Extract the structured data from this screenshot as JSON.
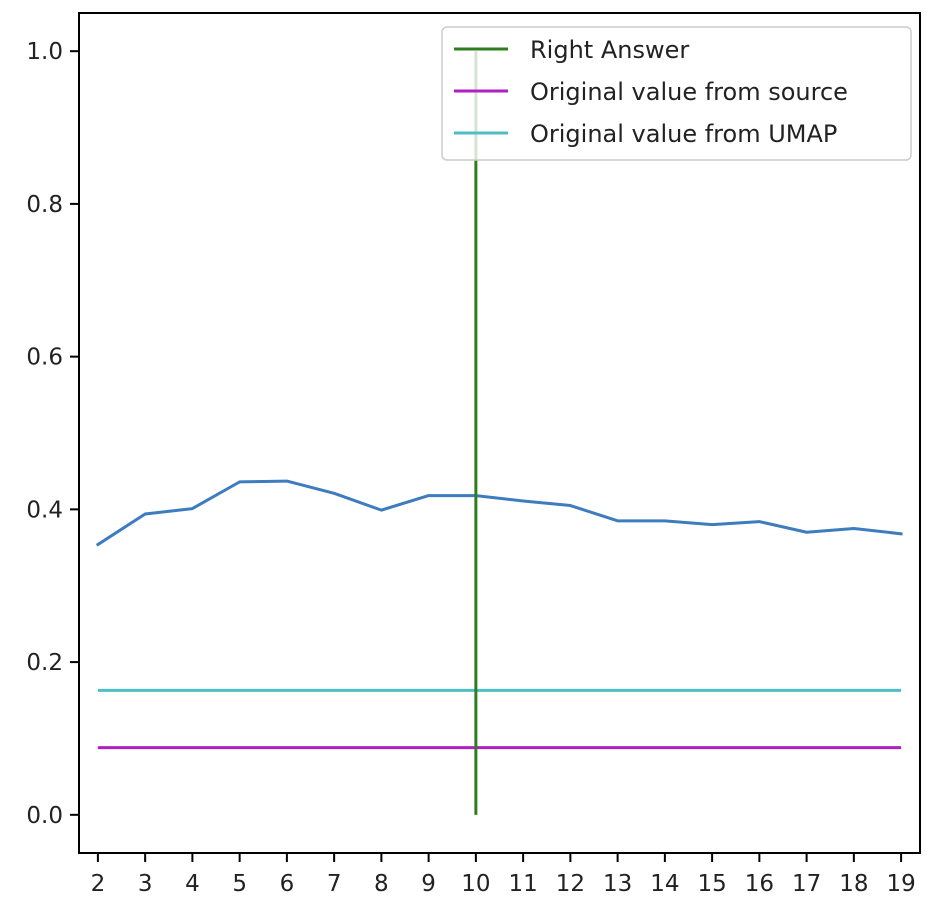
{
  "chart_data": {
    "type": "line",
    "title": "",
    "xlabel": "",
    "ylabel": "",
    "xlim": [
      1.6,
      19.4
    ],
    "ylim": [
      -0.05,
      1.05
    ],
    "xticks": [
      2,
      3,
      4,
      5,
      6,
      7,
      8,
      9,
      10,
      11,
      12,
      13,
      14,
      15,
      16,
      17,
      18,
      19
    ],
    "yticks": [
      0.0,
      0.2,
      0.4,
      0.6,
      0.8,
      1.0
    ],
    "ytick_labels": [
      "0.0",
      "0.2",
      "0.4",
      "0.6",
      "0.8",
      "1.0"
    ],
    "grid": false,
    "legend_position": "top-right",
    "series": [
      {
        "color": "#3d7cbf",
        "x": [
          2,
          3,
          4,
          5,
          6,
          7,
          8,
          9,
          10,
          11,
          12,
          13,
          14,
          15,
          16,
          17,
          18,
          19
        ],
        "y": [
          0.354,
          0.394,
          0.401,
          0.436,
          0.437,
          0.421,
          0.399,
          0.418,
          0.418,
          0.411,
          0.405,
          0.385,
          0.385,
          0.38,
          0.384,
          0.37,
          0.375,
          0.368
        ]
      }
    ],
    "vertical_lines": [
      {
        "name": "Right Answer",
        "x": 10,
        "y": [
          0.0,
          1.0
        ],
        "color": "#2e7d1f"
      }
    ],
    "horizontal_lines": [
      {
        "name": "Original value from source",
        "y": 0.088,
        "x": [
          2,
          19
        ],
        "color": "#b01fc4"
      },
      {
        "name": "Original value from UMAP",
        "y": 0.163,
        "x": [
          2,
          19
        ],
        "color": "#4dbec4"
      }
    ],
    "legend": [
      "Right Answer",
      "Original value from source",
      "Original value from UMAP"
    ]
  }
}
